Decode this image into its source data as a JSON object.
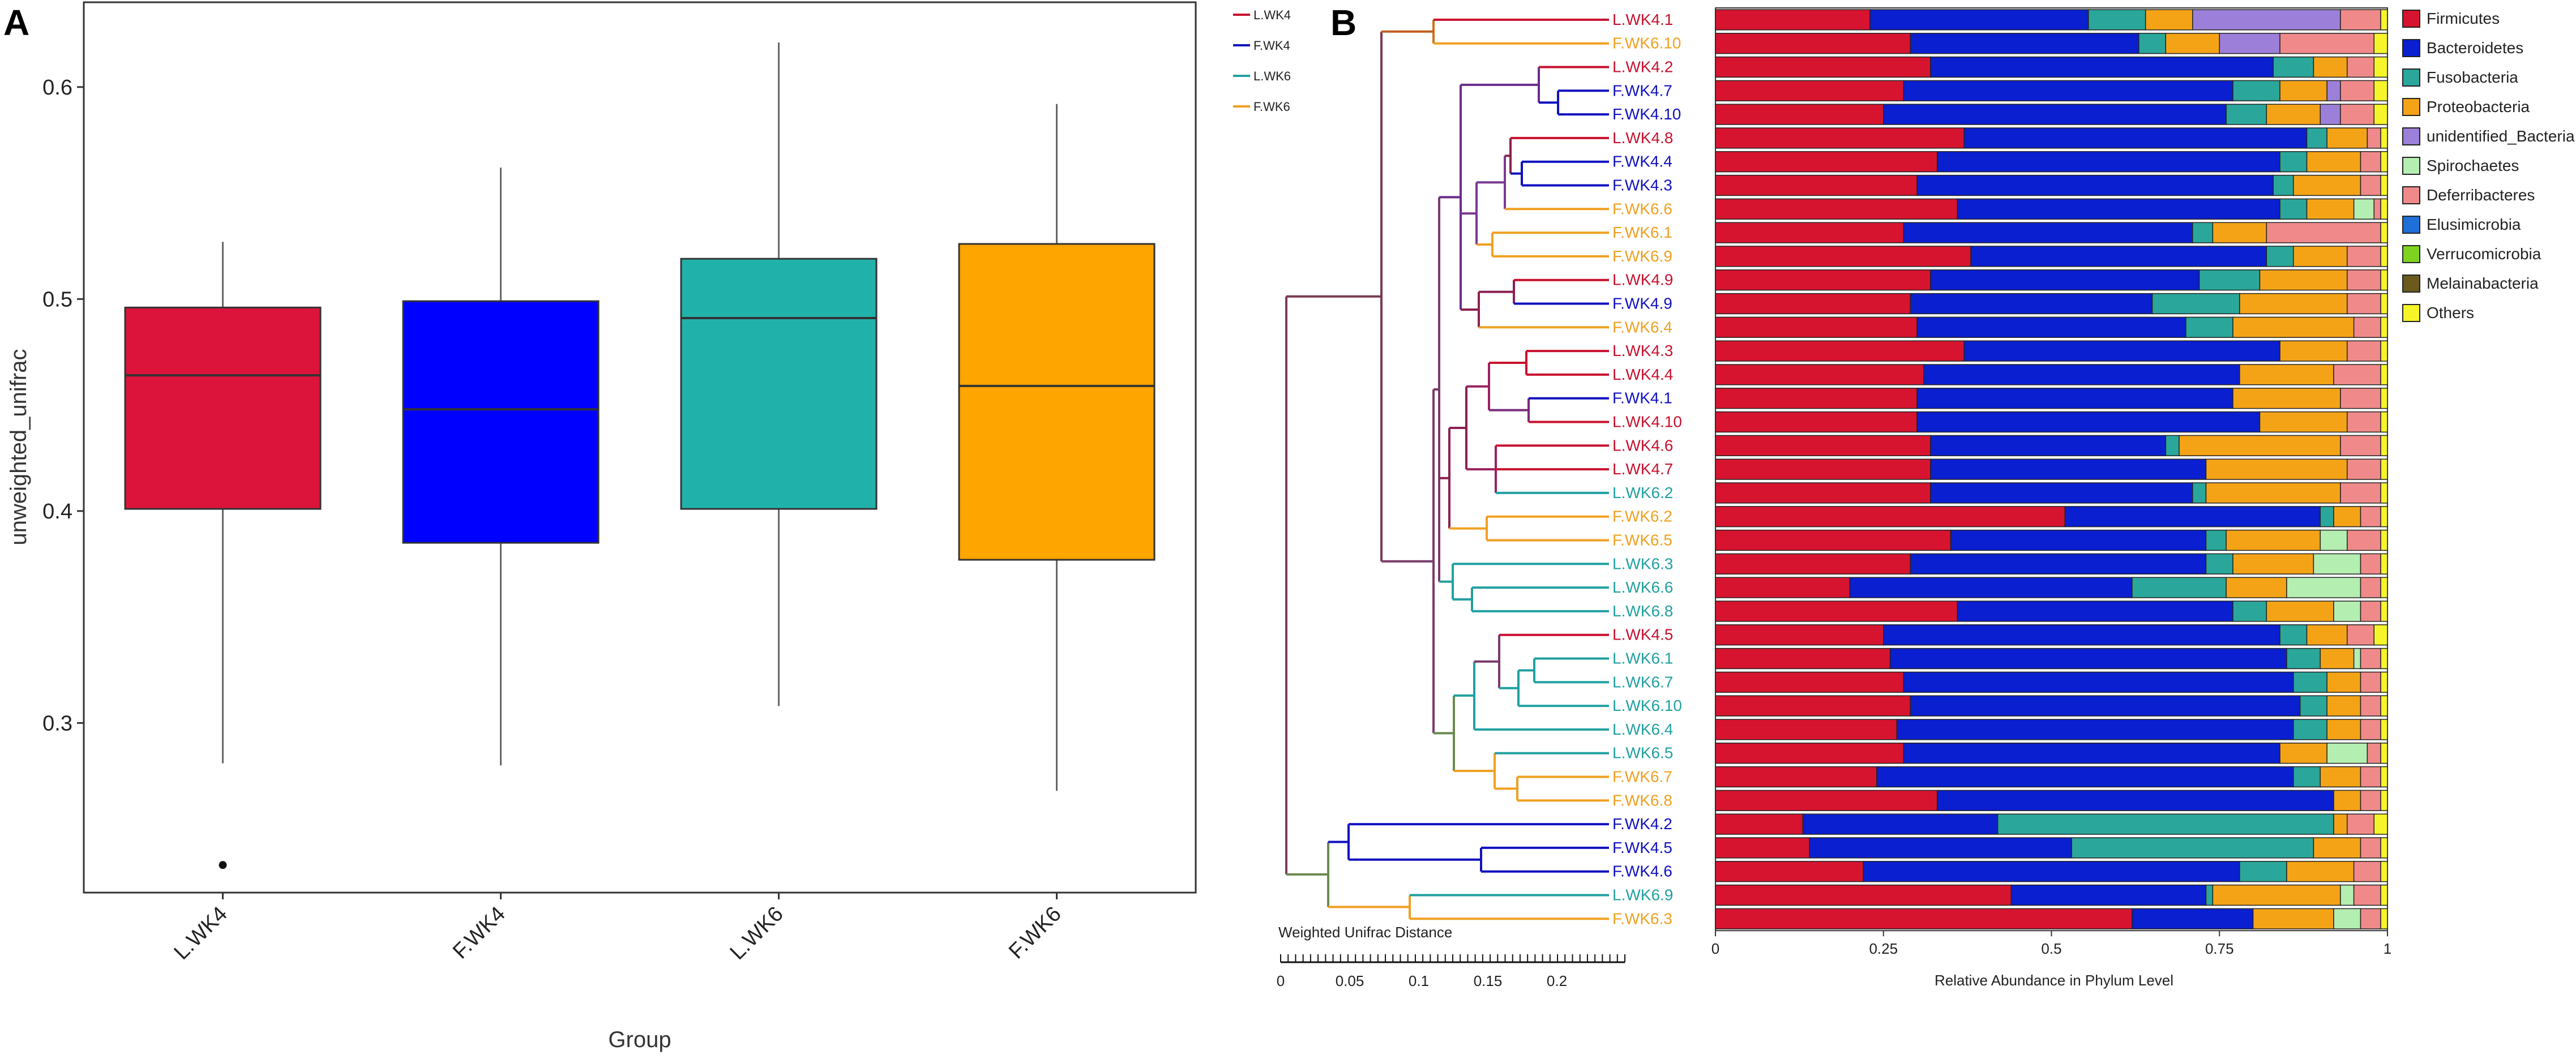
{
  "chart_data": [
    {
      "panel": "A",
      "type": "box",
      "title": "",
      "xlabel": "Group",
      "ylabel": "unweighted_unifrac",
      "ylim": [
        0.22,
        0.64
      ],
      "yticks": [
        0.3,
        0.4,
        0.5,
        0.6
      ],
      "categories": [
        "L.WK4",
        "F.WK4",
        "L.WK6",
        "F.WK6"
      ],
      "colors": [
        "#DC143C",
        "#0000FF",
        "#20B2AA",
        "#FFA500"
      ],
      "boxes": [
        {
          "group": "L.WK4",
          "whisker_low": 0.281,
          "q1": 0.401,
          "median": 0.464,
          "q3": 0.496,
          "whisker_high": 0.527,
          "outliers": [
            0.233
          ]
        },
        {
          "group": "F.WK4",
          "whisker_low": 0.28,
          "q1": 0.385,
          "median": 0.448,
          "q3": 0.499,
          "whisker_high": 0.562,
          "outliers": []
        },
        {
          "group": "L.WK6",
          "whisker_low": 0.308,
          "q1": 0.401,
          "median": 0.491,
          "q3": 0.519,
          "whisker_high": 0.621,
          "outliers": []
        },
        {
          "group": "F.WK6",
          "whisker_low": 0.268,
          "q1": 0.377,
          "median": 0.459,
          "q3": 0.526,
          "whisker_high": 0.592,
          "outliers": []
        }
      ]
    },
    {
      "panel": "B",
      "type": "stacked_bar_with_dendrogram",
      "xlabel": "Relative Abundance in Phylum Level",
      "xticks": [
        "0",
        "0.25",
        "0.5",
        "0.75",
        "1"
      ],
      "tree_legend": [
        {
          "name": "L.WK4",
          "color": "#C8102E"
        },
        {
          "name": "F.WK4",
          "color": "#1010C0"
        },
        {
          "name": "L.WK6",
          "color": "#20A0A0"
        },
        {
          "name": "F.WK6",
          "color": "#F0A020"
        }
      ],
      "scale_bar": {
        "title": "Weighted Unifrac Distance",
        "ticks": [
          "0",
          "0.05",
          "0.1",
          "0.15",
          "0.2"
        ]
      },
      "phyla": [
        {
          "name": "Firmicutes",
          "color": "#D7142F"
        },
        {
          "name": "Bacteroidetes",
          "color": "#0A1FD0"
        },
        {
          "name": "Fusobacteria",
          "color": "#2AA79A"
        },
        {
          "name": "Proteobacteria",
          "color": "#F5A316"
        },
        {
          "name": "unidentified_Bacteria",
          "color": "#9B7FD8"
        },
        {
          "name": "Spirochaetes",
          "color": "#B4EEB0"
        },
        {
          "name": "Deferribacteres",
          "color": "#F08A8A"
        },
        {
          "name": "Elusimicrobia",
          "color": "#1E6FD8"
        },
        {
          "name": "Verrucomicrobia",
          "color": "#7ED321"
        },
        {
          "name": "Melainabacteria",
          "color": "#6B5A1E"
        },
        {
          "name": "Others",
          "color": "#F5F52A"
        }
      ],
      "samples": [
        {
          "name": "L.WK4.1",
          "group": "L.WK4",
          "values": [
            0.23,
            0.325,
            0.085,
            0.07,
            0.22,
            0.0,
            0.06,
            0.0,
            0.0,
            0.0,
            0.01
          ]
        },
        {
          "name": "F.WK6.10",
          "group": "F.WK6",
          "values": [
            0.29,
            0.34,
            0.04,
            0.08,
            0.09,
            0.0,
            0.14,
            0.0,
            0.0,
            0.0,
            0.02
          ]
        },
        {
          "name": "L.WK4.2",
          "group": "L.WK4",
          "values": [
            0.32,
            0.51,
            0.06,
            0.05,
            0.0,
            0.0,
            0.04,
            0.0,
            0.0,
            0.0,
            0.02
          ]
        },
        {
          "name": "F.WK4.7",
          "group": "F.WK4",
          "values": [
            0.28,
            0.49,
            0.07,
            0.07,
            0.02,
            0.0,
            0.05,
            0.0,
            0.0,
            0.0,
            0.02
          ]
        },
        {
          "name": "F.WK4.10",
          "group": "F.WK4",
          "values": [
            0.25,
            0.51,
            0.06,
            0.08,
            0.03,
            0.0,
            0.05,
            0.0,
            0.0,
            0.0,
            0.02
          ]
        },
        {
          "name": "L.WK4.8",
          "group": "L.WK4",
          "values": [
            0.37,
            0.51,
            0.03,
            0.06,
            0.0,
            0.0,
            0.02,
            0.0,
            0.0,
            0.0,
            0.01
          ]
        },
        {
          "name": "F.WK4.4",
          "group": "F.WK4",
          "values": [
            0.33,
            0.51,
            0.04,
            0.08,
            0.0,
            0.0,
            0.03,
            0.0,
            0.0,
            0.0,
            0.01
          ]
        },
        {
          "name": "F.WK4.3",
          "group": "F.WK4",
          "values": [
            0.3,
            0.53,
            0.03,
            0.1,
            0.0,
            0.0,
            0.03,
            0.0,
            0.0,
            0.0,
            0.01
          ]
        },
        {
          "name": "F.WK6.6",
          "group": "F.WK6",
          "values": [
            0.36,
            0.48,
            0.04,
            0.07,
            0.0,
            0.03,
            0.01,
            0.0,
            0.0,
            0.0,
            0.01
          ]
        },
        {
          "name": "F.WK6.1",
          "group": "F.WK6",
          "values": [
            0.28,
            0.43,
            0.03,
            0.08,
            0.0,
            0.0,
            0.17,
            0.0,
            0.0,
            0.0,
            0.01
          ]
        },
        {
          "name": "F.WK6.9",
          "group": "F.WK6",
          "values": [
            0.38,
            0.44,
            0.04,
            0.08,
            0.0,
            0.0,
            0.05,
            0.0,
            0.0,
            0.0,
            0.01
          ]
        },
        {
          "name": "L.WK4.9",
          "group": "L.WK4",
          "values": [
            0.32,
            0.4,
            0.09,
            0.13,
            0.0,
            0.0,
            0.05,
            0.0,
            0.0,
            0.0,
            0.01
          ]
        },
        {
          "name": "F.WK4.9",
          "group": "F.WK4",
          "values": [
            0.29,
            0.36,
            0.13,
            0.16,
            0.0,
            0.0,
            0.05,
            0.0,
            0.0,
            0.0,
            0.01
          ]
        },
        {
          "name": "F.WK6.4",
          "group": "F.WK6",
          "values": [
            0.3,
            0.4,
            0.07,
            0.18,
            0.0,
            0.0,
            0.04,
            0.0,
            0.0,
            0.0,
            0.01
          ]
        },
        {
          "name": "L.WK4.3",
          "group": "L.WK4",
          "values": [
            0.37,
            0.47,
            0.0,
            0.1,
            0.0,
            0.0,
            0.05,
            0.0,
            0.0,
            0.0,
            0.01
          ]
        },
        {
          "name": "L.WK4.4",
          "group": "L.WK4",
          "values": [
            0.31,
            0.47,
            0.0,
            0.14,
            0.0,
            0.0,
            0.07,
            0.0,
            0.0,
            0.0,
            0.01
          ]
        },
        {
          "name": "F.WK4.1",
          "group": "F.WK4",
          "values": [
            0.3,
            0.47,
            0.0,
            0.16,
            0.0,
            0.0,
            0.06,
            0.0,
            0.0,
            0.0,
            0.01
          ]
        },
        {
          "name": "L.WK4.10",
          "group": "L.WK4",
          "values": [
            0.3,
            0.51,
            0.0,
            0.13,
            0.0,
            0.0,
            0.05,
            0.0,
            0.0,
            0.0,
            0.01
          ]
        },
        {
          "name": "L.WK4.6",
          "group": "L.WK4",
          "values": [
            0.32,
            0.35,
            0.02,
            0.24,
            0.0,
            0.0,
            0.06,
            0.0,
            0.0,
            0.0,
            0.01
          ]
        },
        {
          "name": "L.WK4.7",
          "group": "L.WK4",
          "values": [
            0.32,
            0.41,
            0.0,
            0.21,
            0.0,
            0.0,
            0.05,
            0.0,
            0.0,
            0.0,
            0.01
          ]
        },
        {
          "name": "L.WK6.2",
          "group": "L.WK6",
          "values": [
            0.32,
            0.39,
            0.02,
            0.2,
            0.0,
            0.0,
            0.06,
            0.0,
            0.0,
            0.0,
            0.01
          ]
        },
        {
          "name": "F.WK6.2",
          "group": "F.WK6",
          "values": [
            0.52,
            0.38,
            0.02,
            0.04,
            0.0,
            0.0,
            0.03,
            0.0,
            0.0,
            0.0,
            0.01
          ]
        },
        {
          "name": "F.WK6.5",
          "group": "F.WK6",
          "values": [
            0.35,
            0.38,
            0.03,
            0.14,
            0.0,
            0.04,
            0.05,
            0.0,
            0.0,
            0.0,
            0.01
          ]
        },
        {
          "name": "L.WK6.3",
          "group": "L.WK6",
          "values": [
            0.29,
            0.44,
            0.04,
            0.12,
            0.0,
            0.07,
            0.03,
            0.0,
            0.0,
            0.0,
            0.01
          ]
        },
        {
          "name": "L.WK6.6",
          "group": "L.WK6",
          "values": [
            0.2,
            0.42,
            0.14,
            0.09,
            0.0,
            0.11,
            0.03,
            0.0,
            0.0,
            0.0,
            0.01
          ]
        },
        {
          "name": "L.WK6.8",
          "group": "L.WK6",
          "values": [
            0.36,
            0.41,
            0.05,
            0.1,
            0.0,
            0.04,
            0.03,
            0.0,
            0.0,
            0.0,
            0.01
          ]
        },
        {
          "name": "L.WK4.5",
          "group": "L.WK4",
          "values": [
            0.25,
            0.59,
            0.04,
            0.06,
            0.0,
            0.0,
            0.04,
            0.0,
            0.0,
            0.0,
            0.02
          ]
        },
        {
          "name": "L.WK6.1",
          "group": "L.WK6",
          "values": [
            0.26,
            0.59,
            0.05,
            0.05,
            0.0,
            0.01,
            0.03,
            0.0,
            0.0,
            0.0,
            0.01
          ]
        },
        {
          "name": "L.WK6.7",
          "group": "L.WK6",
          "values": [
            0.28,
            0.58,
            0.05,
            0.05,
            0.0,
            0.0,
            0.03,
            0.0,
            0.0,
            0.0,
            0.01
          ]
        },
        {
          "name": "L.WK6.10",
          "group": "L.WK6",
          "values": [
            0.29,
            0.58,
            0.04,
            0.05,
            0.0,
            0.0,
            0.03,
            0.0,
            0.0,
            0.0,
            0.01
          ]
        },
        {
          "name": "L.WK6.4",
          "group": "L.WK6",
          "values": [
            0.27,
            0.59,
            0.05,
            0.05,
            0.0,
            0.0,
            0.03,
            0.0,
            0.0,
            0.0,
            0.01
          ]
        },
        {
          "name": "L.WK6.5",
          "group": "L.WK6",
          "values": [
            0.28,
            0.56,
            0.0,
            0.07,
            0.0,
            0.06,
            0.02,
            0.0,
            0.0,
            0.0,
            0.01
          ]
        },
        {
          "name": "F.WK6.7",
          "group": "F.WK6",
          "values": [
            0.24,
            0.62,
            0.04,
            0.06,
            0.0,
            0.0,
            0.03,
            0.0,
            0.0,
            0.0,
            0.01
          ]
        },
        {
          "name": "F.WK6.8",
          "group": "F.WK6",
          "values": [
            0.33,
            0.59,
            0.0,
            0.04,
            0.0,
            0.0,
            0.03,
            0.0,
            0.0,
            0.0,
            0.01
          ]
        },
        {
          "name": "F.WK4.2",
          "group": "F.WK4",
          "values": [
            0.13,
            0.29,
            0.5,
            0.02,
            0.0,
            0.0,
            0.04,
            0.0,
            0.0,
            0.0,
            0.02
          ]
        },
        {
          "name": "F.WK4.5",
          "group": "F.WK4",
          "values": [
            0.14,
            0.39,
            0.36,
            0.07,
            0.0,
            0.0,
            0.03,
            0.0,
            0.0,
            0.0,
            0.01
          ]
        },
        {
          "name": "F.WK4.6",
          "group": "F.WK4",
          "values": [
            0.22,
            0.56,
            0.07,
            0.1,
            0.0,
            0.0,
            0.04,
            0.0,
            0.0,
            0.0,
            0.01
          ]
        },
        {
          "name": "L.WK6.9",
          "group": "L.WK6",
          "values": [
            0.44,
            0.29,
            0.01,
            0.19,
            0.0,
            0.02,
            0.04,
            0.0,
            0.0,
            0.0,
            0.01
          ]
        },
        {
          "name": "F.WK6.3",
          "group": "F.WK6",
          "values": [
            0.62,
            0.18,
            0.0,
            0.12,
            0.0,
            0.04,
            0.03,
            0.0,
            0.0,
            0.0,
            0.01
          ]
        }
      ]
    }
  ],
  "labels": {
    "panel_a": "A",
    "panel_b": "B"
  }
}
